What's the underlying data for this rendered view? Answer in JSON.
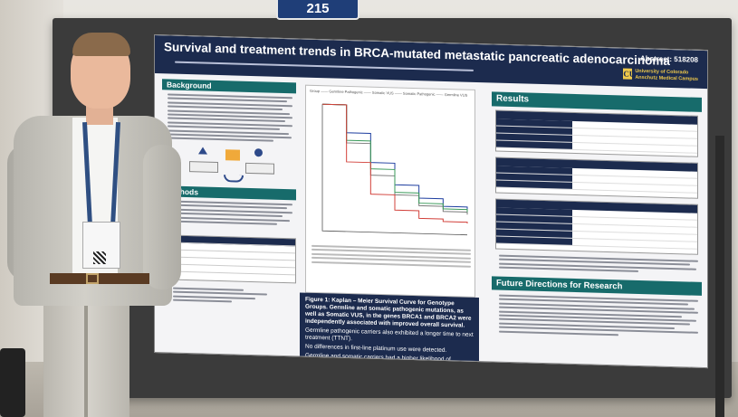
{
  "sign": {
    "label": "215"
  },
  "poster": {
    "title": "Survival and treatment trends in BRCA-mutated metastatic pancreatic adenocarcinoma",
    "abstract": "Abstract: 518208",
    "university": {
      "mark": "CU",
      "line1": "University of Colorado",
      "line2": "Anschutz Medical Campus"
    },
    "sections": {
      "background": "Background",
      "methods": "Methods",
      "results": "Results",
      "future": "Future Directions for Research"
    },
    "figure_caption": {
      "title": "Figure 1: Kaplan – Meier Survival Curve for Genotype Groups. Germline and somatic pathogenic mutations, as well as Somatic VUS, in the genes BRCA1 and BRCA2 were independently associated with improved overall survival.",
      "bullets": [
        "Germline pathogenic carriers also exhibited a longer time to next treatment (TTNT).",
        "No differences in first-line platinum use were detected.",
        "Germline and somatic carriers had a higher likelihood of receiving more lines of therapy."
      ]
    },
    "km_legend": "Group —— Germline Pathogenic —— Somatic VUS —— Somatic Pathogenic —— Germline VUS"
  },
  "chart_data": {
    "type": "line",
    "title": "",
    "xlabel": "",
    "ylabel": "",
    "ylim": [
      0,
      1
    ],
    "series": [
      {
        "name": "Germline Pathogenic",
        "color": "#1f3fa0",
        "x": [
          0,
          10,
          20,
          30,
          40,
          50,
          60
        ],
        "values": [
          1.0,
          0.78,
          0.55,
          0.38,
          0.28,
          0.22,
          0.2
        ]
      },
      {
        "name": "Somatic VUS",
        "color": "#7a7a7a",
        "x": [
          0,
          10,
          20,
          30,
          40,
          50,
          60
        ],
        "values": [
          1.0,
          0.7,
          0.45,
          0.3,
          0.22,
          0.18,
          0.16
        ]
      },
      {
        "name": "Somatic Pathogenic",
        "color": "#3a9a5a",
        "x": [
          0,
          10,
          20,
          30,
          40,
          50,
          60
        ],
        "values": [
          1.0,
          0.72,
          0.5,
          0.32,
          0.24,
          0.2,
          0.18
        ]
      },
      {
        "name": "Germline VUS",
        "color": "#d2403a",
        "x": [
          0,
          10,
          20,
          30,
          40,
          50,
          60
        ],
        "values": [
          1.0,
          0.55,
          0.3,
          0.18,
          0.12,
          0.1,
          0.09
        ]
      }
    ]
  }
}
